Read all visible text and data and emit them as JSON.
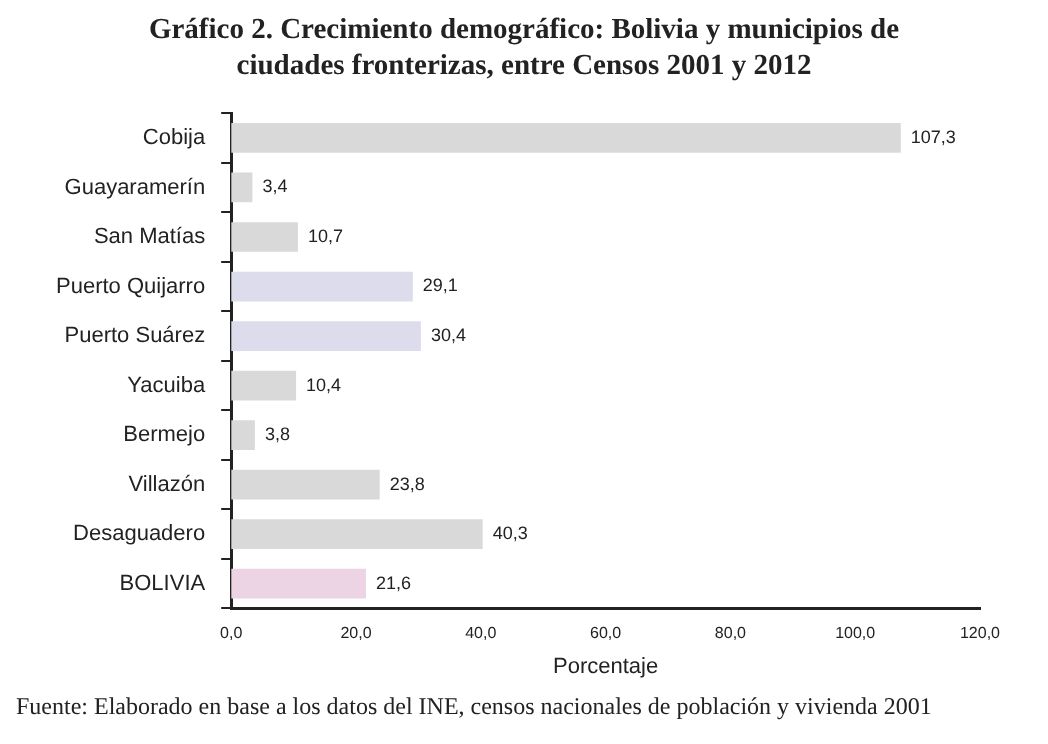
{
  "chart_data": {
    "type": "bar",
    "orientation": "horizontal",
    "title": "Gráfico 2. Crecimiento demográfico: Bolivia y municipios de ciudades fronterizas, entre Censos 2001 y 2012",
    "xlabel": "Porcentaje",
    "categories": [
      "Cobija",
      "Guayaramerín",
      "San Matías",
      "Puerto Quijarro",
      "Puerto Suárez",
      "Yacuiba",
      "Bermejo",
      "Villazón",
      "Desaguadero",
      "BOLIVIA"
    ],
    "values": [
      107.3,
      3.4,
      10.7,
      29.1,
      30.4,
      10.4,
      3.8,
      23.8,
      40.3,
      21.6
    ],
    "value_labels": [
      "107,3",
      "3,4",
      "10,7",
      "29,1",
      "30,4",
      "10,4",
      "3,8",
      "23,8",
      "40,3",
      "21,6"
    ],
    "colors": [
      "#d9d9d9",
      "#d9d9d9",
      "#d9d9d9",
      "#dcdcec",
      "#dcdcec",
      "#d9d9d9",
      "#d9d9d9",
      "#d9d9d9",
      "#d9d9d9",
      "#ecd4e4"
    ],
    "xlim": [
      0,
      120
    ],
    "xticks": [
      {
        "value": 0,
        "label": "0,0"
      },
      {
        "value": 20,
        "label": "20,0"
      },
      {
        "value": 40,
        "label": "40,0"
      },
      {
        "value": 60,
        "label": "60,0"
      },
      {
        "value": 80,
        "label": "80,0"
      },
      {
        "value": 100,
        "label": "100,0"
      },
      {
        "value": 120,
        "label": "120,0"
      }
    ],
    "grid": false,
    "legend": false,
    "annotations": [
      "Fuente: Elaborado en base a los datos del INE, censos nacionales de población y vivienda 2001"
    ]
  }
}
